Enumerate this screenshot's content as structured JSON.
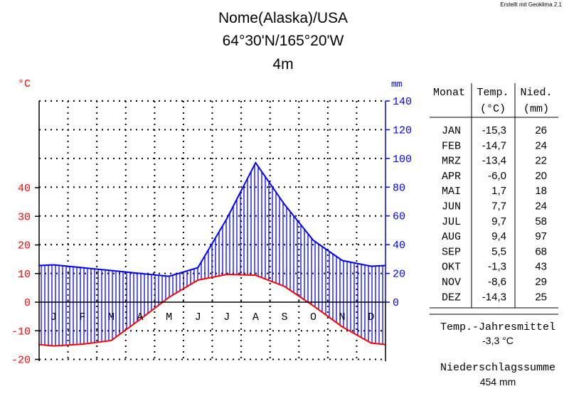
{
  "credit": "Erstellt mit Geoklima 2.1",
  "station": {
    "name": "Nome(Alaska)/USA",
    "coords": "64°30'N/165°20'W",
    "elevation": "4m"
  },
  "colors": {
    "temperature": "#ff0000",
    "precipitation": "#0000ff",
    "text": "#000000"
  },
  "chart_data": {
    "type": "line",
    "categories": [
      "J",
      "F",
      "M",
      "A",
      "M",
      "J",
      "J",
      "A",
      "S",
      "O",
      "N",
      "D"
    ],
    "left_axis": {
      "unit": "°C",
      "ticks": [
        -20,
        -10,
        0,
        10,
        20,
        30,
        40
      ],
      "range": [
        -20,
        50
      ]
    },
    "right_axis": {
      "unit": "mm",
      "ticks": [
        0,
        20,
        40,
        60,
        80,
        100,
        120,
        140
      ],
      "range": [
        0,
        140
      ]
    },
    "grid": true,
    "series": [
      {
        "axis": "left",
        "style": "red-line",
        "values": [
          -15.3,
          -14.7,
          -13.4,
          -6.0,
          1.7,
          7.7,
          9.7,
          9.4,
          5.5,
          -1.3,
          -8.6,
          -14.3
        ]
      },
      {
        "axis": "right",
        "style": "blue-line-hatched",
        "values": [
          26,
          24,
          22,
          20,
          18,
          24,
          58,
          97,
          68,
          43,
          29,
          25
        ]
      }
    ]
  },
  "table": {
    "headers": {
      "month": "Monat",
      "temp1": "Temp.",
      "temp2": "(°C)",
      "precip1": "Nied.",
      "precip2": "(mm)"
    },
    "rows": [
      {
        "month": "JAN",
        "temp": "-15,3",
        "precip": "26"
      },
      {
        "month": "FEB",
        "temp": "-14,7",
        "precip": "24"
      },
      {
        "month": "MRZ",
        "temp": "-13,4",
        "precip": "22"
      },
      {
        "month": "APR",
        "temp": "-6,0",
        "precip": "20"
      },
      {
        "month": "MAI",
        "temp": "1,7",
        "precip": "18"
      },
      {
        "month": "JUN",
        "temp": "7,7",
        "precip": "24"
      },
      {
        "month": "JUL",
        "temp": "9,7",
        "precip": "58"
      },
      {
        "month": "AUG",
        "temp": "9,4",
        "precip": "97"
      },
      {
        "month": "SEP",
        "temp": "5,5",
        "precip": "68"
      },
      {
        "month": "OKT",
        "temp": "-1,3",
        "precip": "43"
      },
      {
        "month": "NOV",
        "temp": "-8,6",
        "precip": "29"
      },
      {
        "month": "DEZ",
        "temp": "-14,3",
        "precip": "25"
      }
    ]
  },
  "annual": {
    "temp_label": "Temp.-Jahresmittel",
    "temp_value": "-3,3 °C",
    "precip_label": "Niederschlagssumme",
    "precip_value": "454 mm"
  }
}
